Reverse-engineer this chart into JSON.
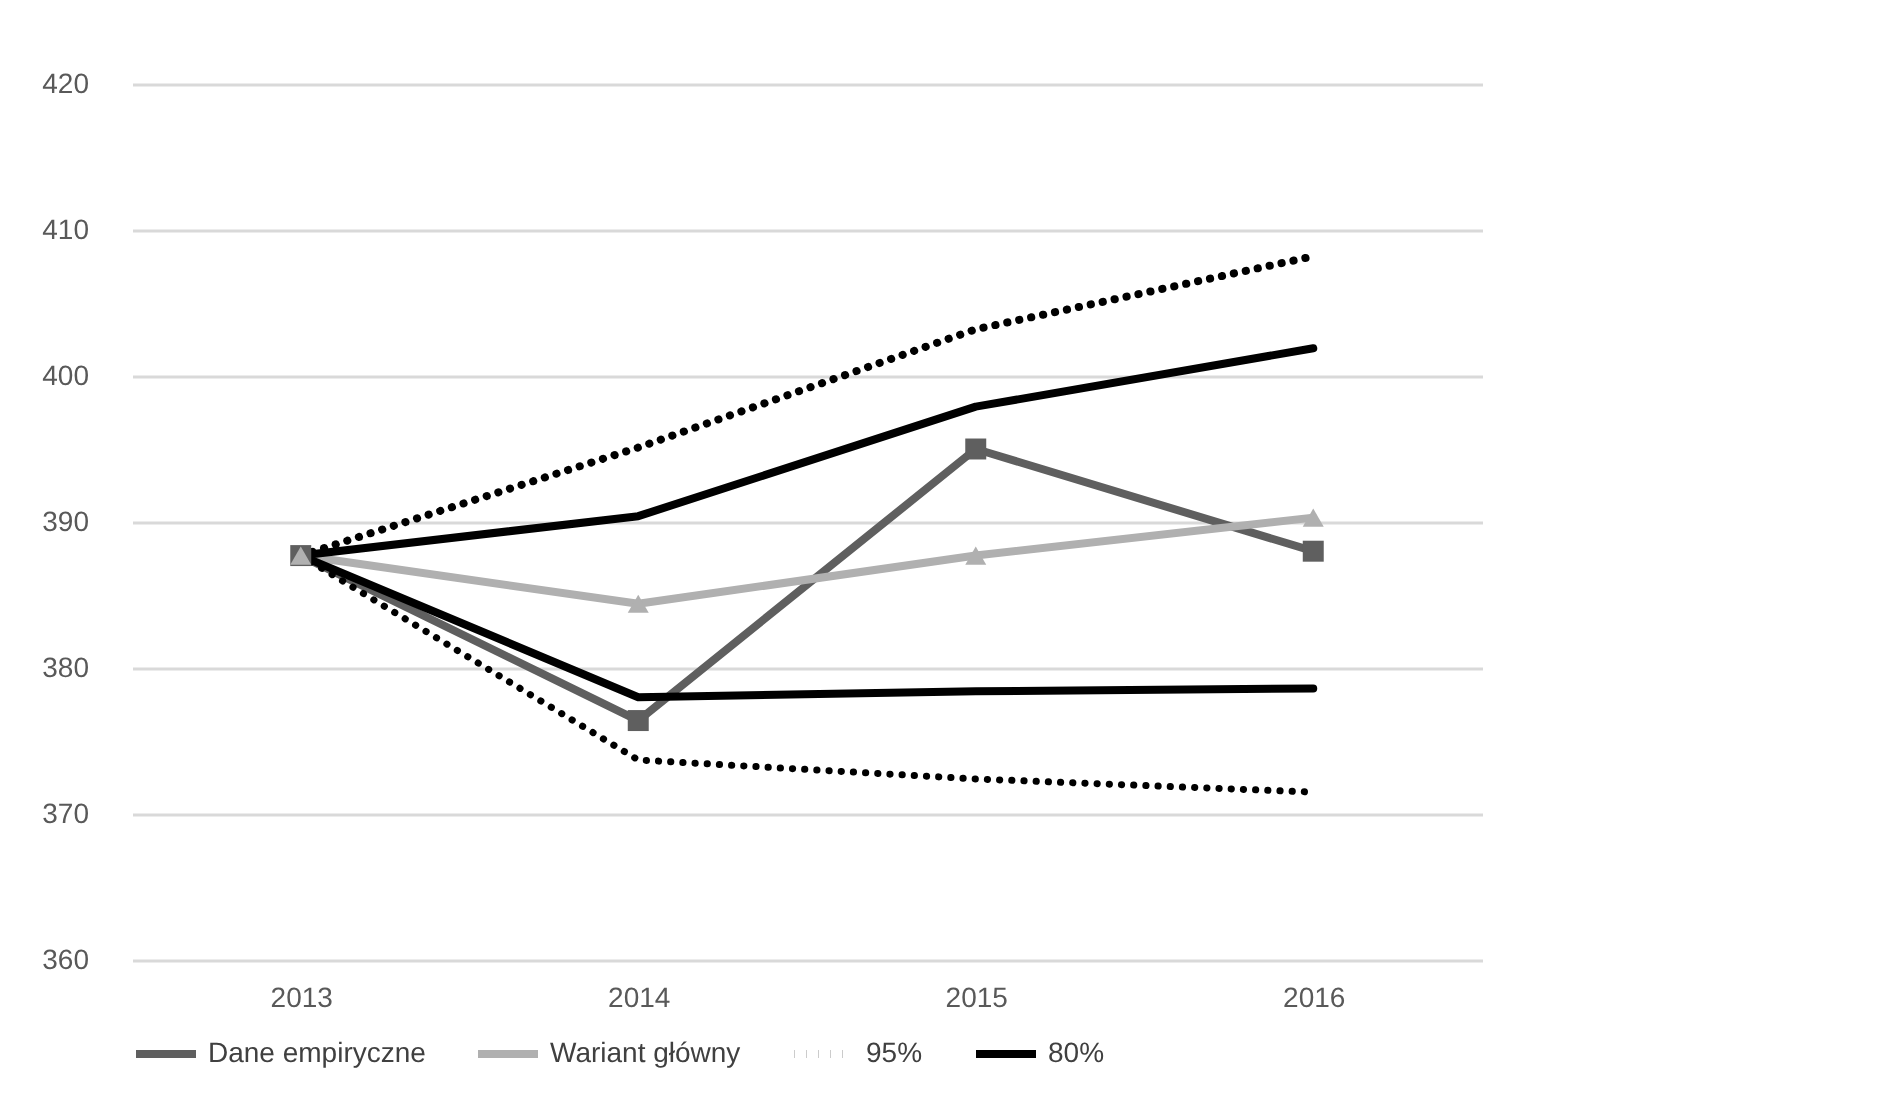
{
  "chart_data": {
    "type": "line",
    "categories": [
      "2013",
      "2014",
      "2015",
      "2016"
    ],
    "ylim": [
      360,
      420
    ],
    "yticks": [
      360,
      370,
      380,
      390,
      400,
      410,
      420
    ],
    "grid": "y",
    "legend": "bottom",
    "series": [
      {
        "name": "Dane empiryczne",
        "color": "#5f5f5f",
        "marker": "square",
        "line_style": "solid",
        "values": [
          387.7,
          376.4,
          395.0,
          388.0
        ]
      },
      {
        "name": "Wariant główny",
        "color": "#b0b0b0",
        "marker": "triangle",
        "line_style": "solid",
        "values": [
          387.7,
          384.4,
          387.7,
          390.3
        ]
      },
      {
        "name": "95%",
        "color": "#000000",
        "marker": "none",
        "line_style": "dotted",
        "values": [
          387.7,
          395.1,
          403.2,
          408.2
        ]
      },
      {
        "color": "#000000",
        "marker": "none",
        "line_style": "dotted",
        "values": [
          387.7,
          373.7,
          372.4,
          371.5
        ]
      },
      {
        "name": "80%",
        "color": "#000000",
        "marker": "none",
        "line_style": "solid",
        "values": [
          387.7,
          390.4,
          397.9,
          401.9
        ]
      },
      {
        "color": "#000000",
        "marker": "none",
        "line_style": "solid",
        "values": [
          387.7,
          378.0,
          378.4,
          378.6
        ]
      }
    ]
  }
}
